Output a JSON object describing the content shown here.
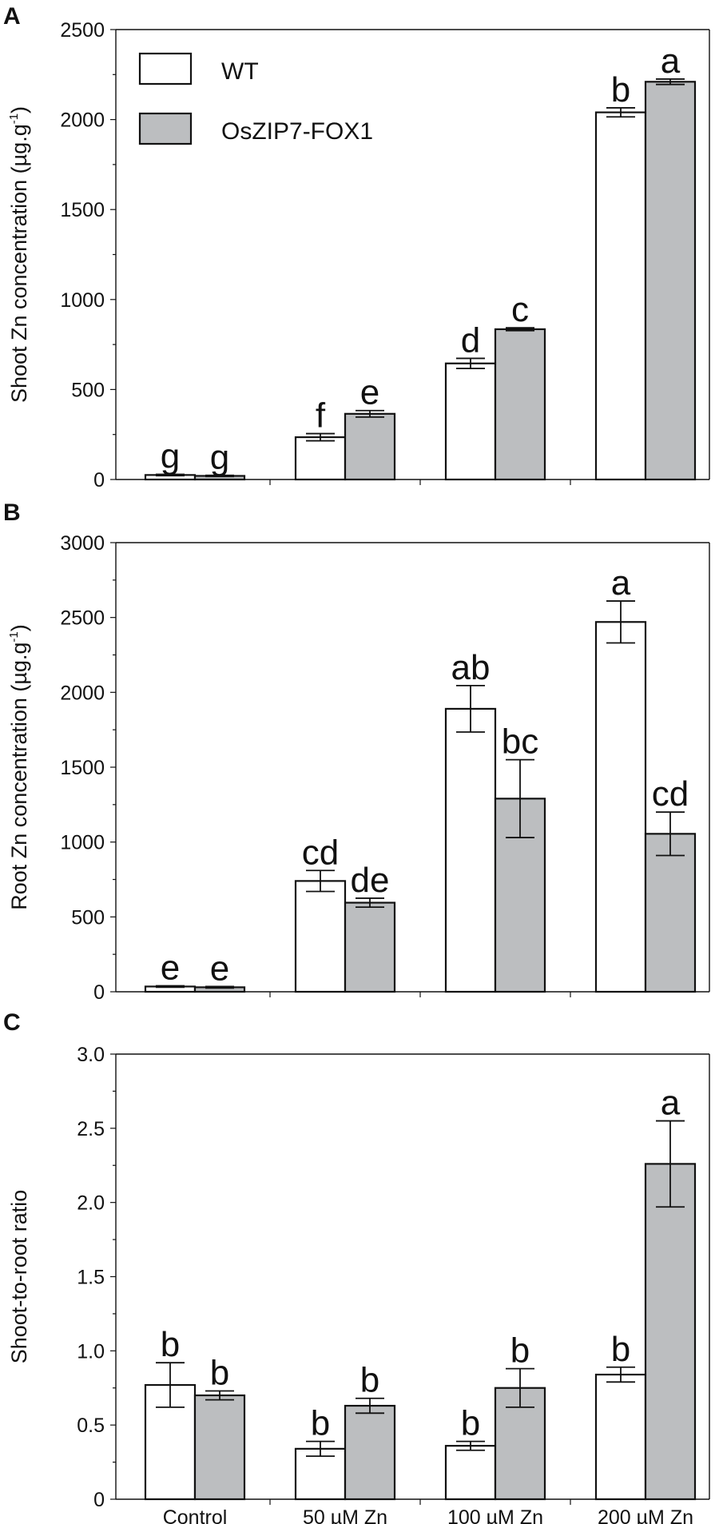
{
  "colors": {
    "WT": "#ffffff",
    "OsZIP7-FOX1": "#bcbec0",
    "stroke": "#111111"
  },
  "legend": {
    "placement": "top-left",
    "wt_label": "WT",
    "fox_label": "OsZIP7-FOX1"
  },
  "chart_data": [
    {
      "type": "bar",
      "panel": "A",
      "ylabel": "Shoot Zn concentration (µg.g",
      "ylabel_sup": "-1",
      "ylabel_end": ")",
      "ylim": [
        0,
        2500
      ],
      "yticks": [
        0,
        500,
        1000,
        1500,
        2000,
        2500
      ],
      "ytick_labels": [
        "0",
        "500",
        "1000",
        "1500",
        "2000",
        "2500"
      ],
      "categories": [
        "Control",
        "50 µM Zn",
        "100 µM Zn",
        "200 µM Zn"
      ],
      "series": [
        {
          "name": "WT",
          "values": [
            25,
            235,
            645,
            2040
          ],
          "errors": [
            4,
            20,
            28,
            25
          ],
          "letters": [
            "g",
            "f",
            "d",
            "b"
          ]
        },
        {
          "name": "OsZIP7-FOX1",
          "values": [
            20,
            365,
            835,
            2210
          ],
          "errors": [
            3,
            18,
            8,
            15
          ],
          "letters": [
            "g",
            "e",
            "c",
            "a"
          ]
        }
      ]
    },
    {
      "type": "bar",
      "panel": "B",
      "ylabel": "Root Zn concentration (µg.g",
      "ylabel_sup": "-1",
      "ylabel_end": ")",
      "ylim": [
        0,
        3000
      ],
      "yticks": [
        0,
        500,
        1000,
        1500,
        2000,
        2500,
        3000
      ],
      "ytick_labels": [
        "0",
        "500",
        "1000",
        "1500",
        "2000",
        "2500",
        "3000"
      ],
      "categories": [
        "Control",
        "50 µM Zn",
        "100 µM Zn",
        "200 µM Zn"
      ],
      "series": [
        {
          "name": "WT",
          "values": [
            35,
            740,
            1890,
            2470
          ],
          "errors": [
            5,
            70,
            155,
            140
          ],
          "letters": [
            "e",
            "cd",
            "ab",
            "a"
          ]
        },
        {
          "name": "OsZIP7-FOX1",
          "values": [
            30,
            595,
            1290,
            1055
          ],
          "errors": [
            5,
            30,
            260,
            145
          ],
          "letters": [
            "e",
            "de",
            "bc",
            "cd"
          ]
        }
      ]
    },
    {
      "type": "bar",
      "panel": "C",
      "ylabel": "Shoot-to-root ratio",
      "ylabel_sup": "",
      "ylabel_end": "",
      "ylim": [
        0,
        3.0
      ],
      "yticks": [
        0,
        0.5,
        1.0,
        1.5,
        2.0,
        2.5,
        3.0
      ],
      "ytick_labels": [
        "0",
        "0.5",
        "1.0",
        "1.5",
        "2.0",
        "2.5",
        "3.0"
      ],
      "categories": [
        "Control",
        "50 µM Zn",
        "100 µM Zn",
        "200 µM Zn"
      ],
      "series": [
        {
          "name": "WT",
          "values": [
            0.77,
            0.34,
            0.36,
            0.84
          ],
          "errors": [
            0.15,
            0.05,
            0.03,
            0.05
          ],
          "letters": [
            "b",
            "b",
            "b",
            "b"
          ]
        },
        {
          "name": "OsZIP7-FOX1",
          "values": [
            0.7,
            0.63,
            0.75,
            2.26
          ],
          "errors": [
            0.03,
            0.05,
            0.13,
            0.29
          ],
          "letters": [
            "b",
            "b",
            "b",
            "a"
          ]
        }
      ]
    }
  ]
}
